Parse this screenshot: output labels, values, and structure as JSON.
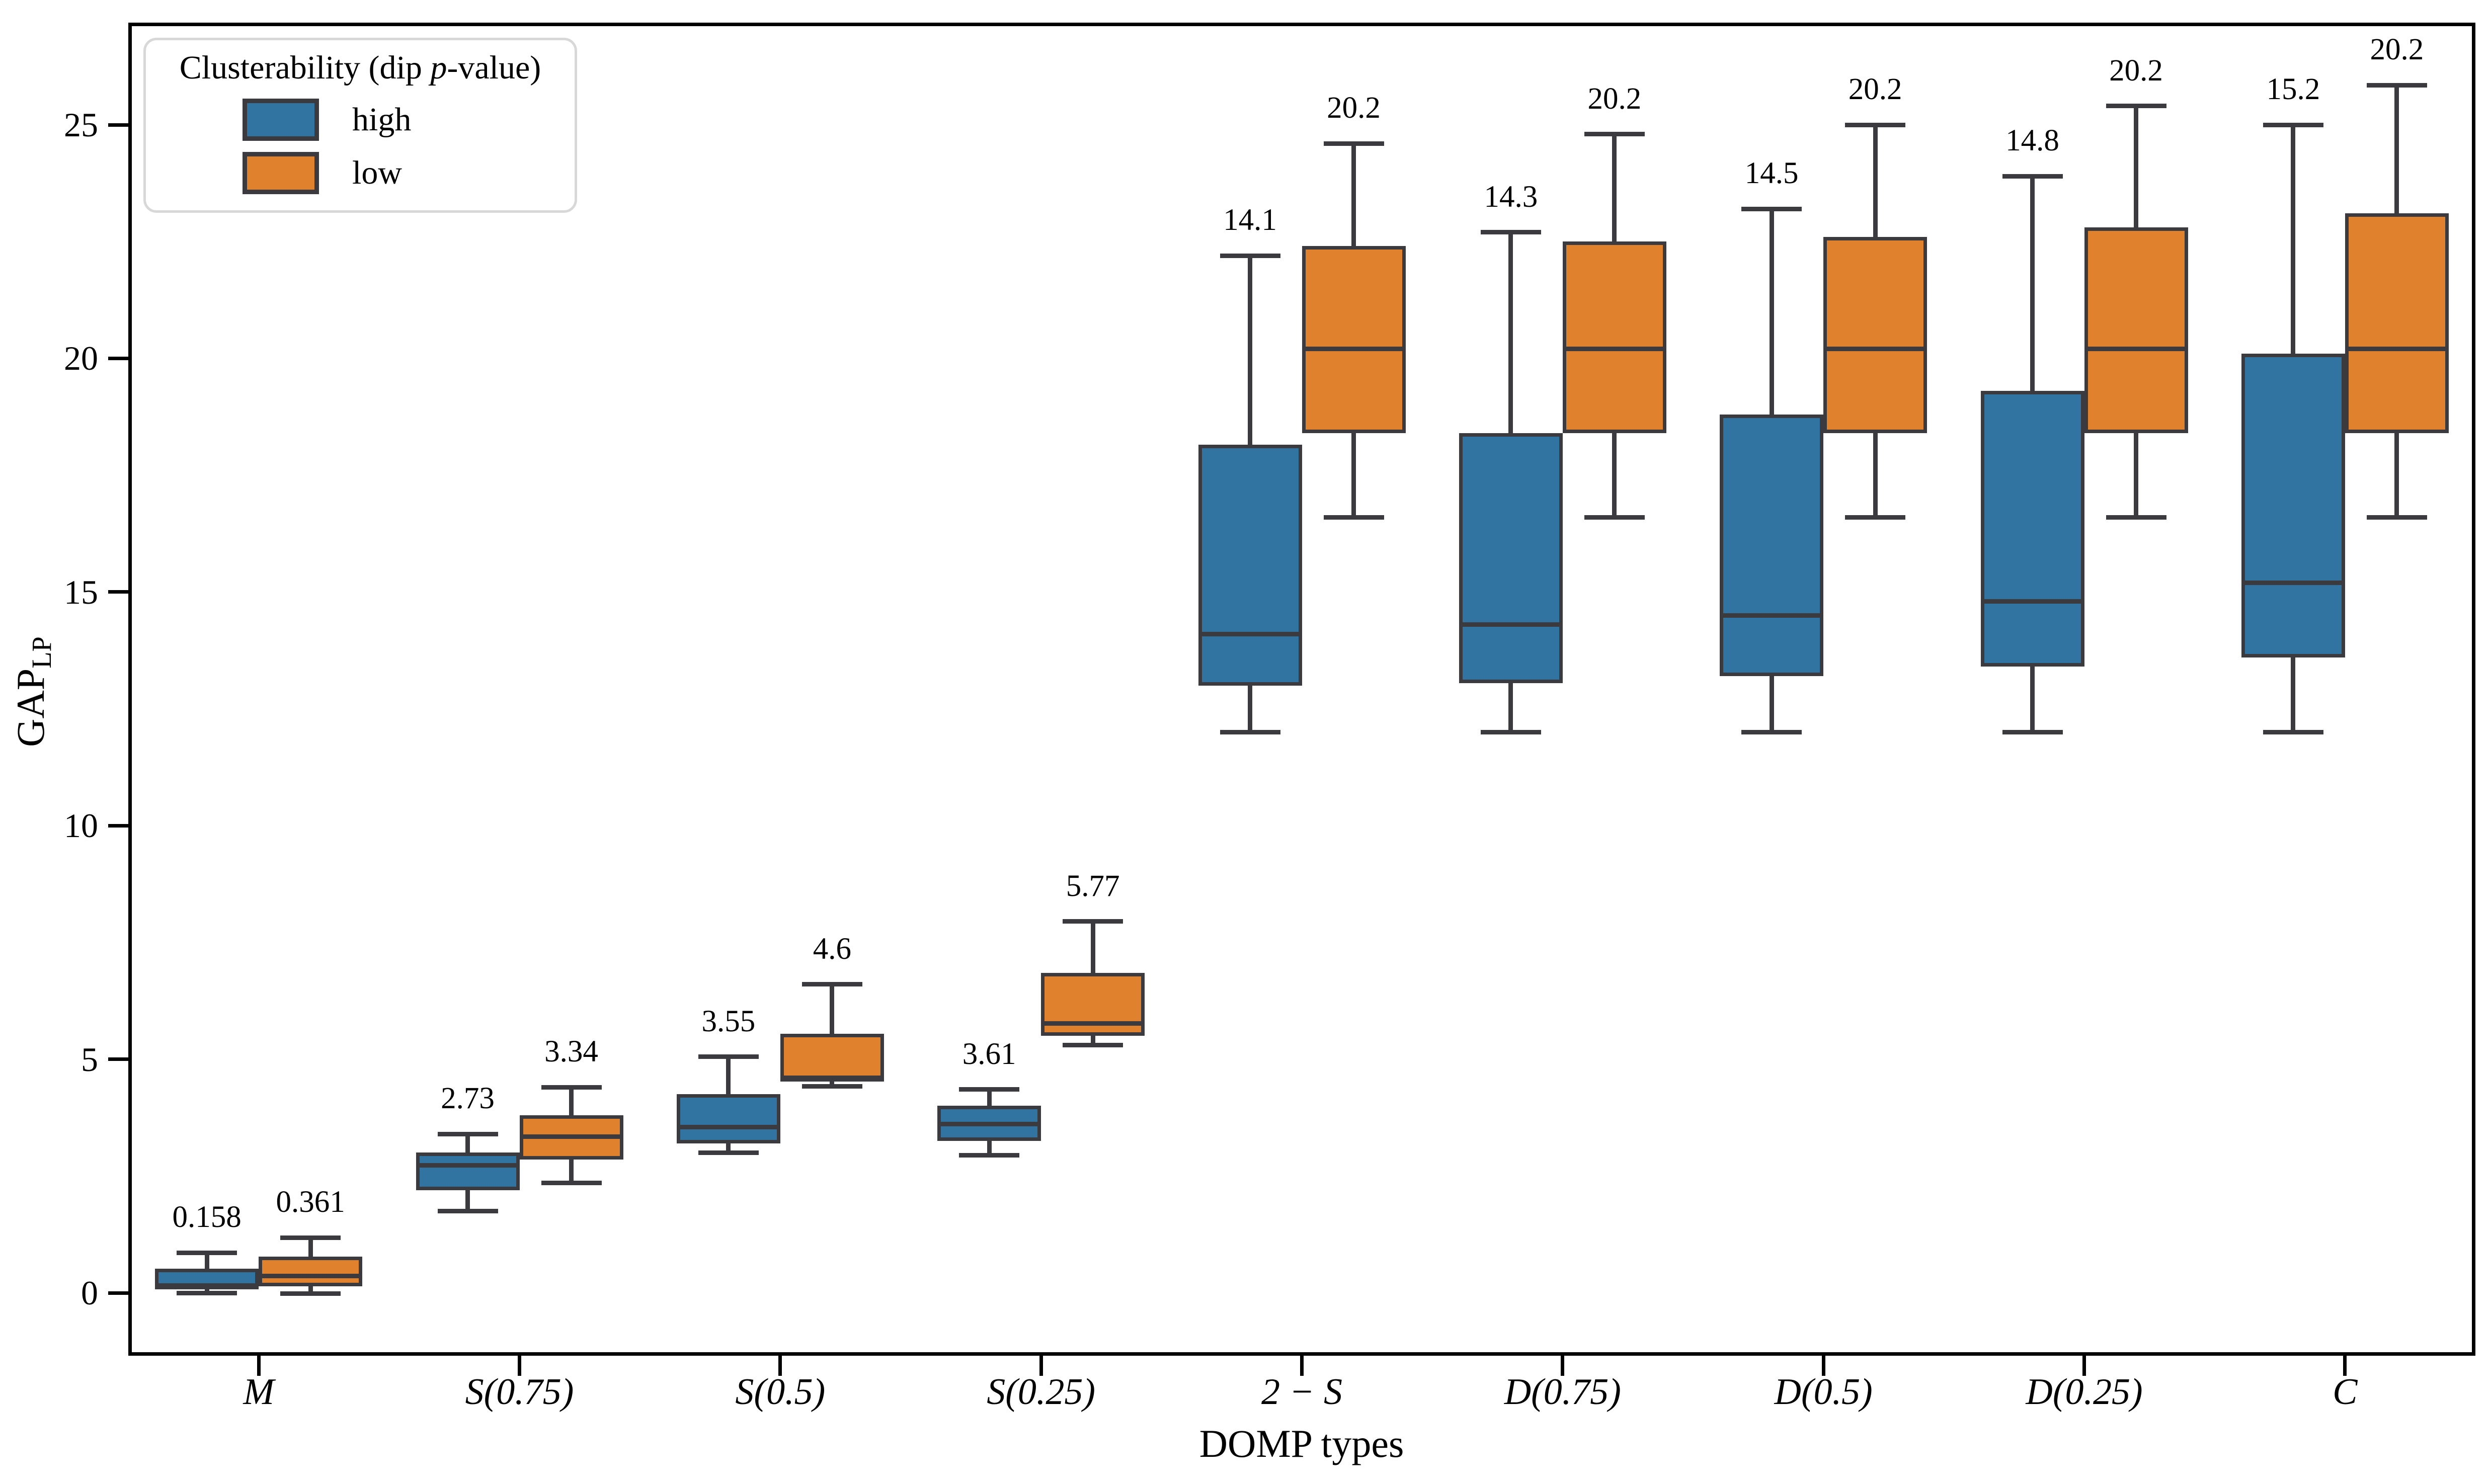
{
  "figure": {
    "background": "#ffffff",
    "edge_color": "#3B3B3F",
    "spine_color": "#000000",
    "legend_border_color": "#D8D8D8"
  },
  "legend": {
    "title_prefix": "Clusterability (dip ",
    "title_italic": "p",
    "title_suffix": "-value)",
    "entries": [
      {
        "label": "high",
        "color": "#3274A1"
      },
      {
        "label": "low",
        "color": "#E0812E"
      }
    ]
  },
  "x_axis": {
    "label": "DOMP types"
  },
  "y_axis": {
    "label": "GAP",
    "label_subscript": "LP"
  },
  "chart_data": {
    "type": "boxplot",
    "title": "",
    "xlabel": "DOMP types",
    "ylabel": "GAP_LP",
    "ylim": [
      -1.35,
      27.2
    ],
    "yticks": [
      0,
      5,
      10,
      15,
      20,
      25
    ],
    "grid": false,
    "legend_position": "upper left",
    "legend_title": "Clusterability (dip p-value)",
    "categories": [
      "M",
      "S(0.75)",
      "S(0.5)",
      "S(0.25)",
      "2 − S",
      "D(0.75)",
      "D(0.5)",
      "D(0.25)",
      "C"
    ],
    "series": [
      {
        "name": "high",
        "color": "#3274A1",
        "boxes": [
          {
            "whislo": 0.0,
            "q1": 0.075,
            "med": 0.158,
            "q3": 0.52,
            "whishi": 0.86,
            "label": "0.158"
          },
          {
            "whislo": 1.75,
            "q1": 2.2,
            "med": 2.73,
            "q3": 3.0,
            "whishi": 3.4,
            "label": "2.73"
          },
          {
            "whislo": 3.0,
            "q1": 3.2,
            "med": 3.55,
            "q3": 4.25,
            "whishi": 5.05,
            "label": "3.55"
          },
          {
            "whislo": 2.95,
            "q1": 3.25,
            "med": 3.61,
            "q3": 4.0,
            "whishi": 4.35,
            "label": "3.61"
          },
          {
            "whislo": 12.0,
            "q1": 13.0,
            "med": 14.1,
            "q3": 18.15,
            "whishi": 22.2,
            "label": "14.1"
          },
          {
            "whislo": 12.0,
            "q1": 13.05,
            "med": 14.3,
            "q3": 18.4,
            "whishi": 22.7,
            "label": "14.3"
          },
          {
            "whislo": 12.0,
            "q1": 13.2,
            "med": 14.5,
            "q3": 18.8,
            "whishi": 23.2,
            "label": "14.5"
          },
          {
            "whislo": 12.0,
            "q1": 13.4,
            "med": 14.8,
            "q3": 19.3,
            "whishi": 23.9,
            "label": "14.8"
          },
          {
            "whislo": 12.0,
            "q1": 13.6,
            "med": 15.2,
            "q3": 20.1,
            "whishi": 25.0,
            "label": "15.2"
          }
        ]
      },
      {
        "name": "low",
        "color": "#E0812E",
        "boxes": [
          {
            "whislo": -0.02,
            "q1": 0.14,
            "med": 0.361,
            "q3": 0.78,
            "whishi": 1.18,
            "label": "0.361"
          },
          {
            "whislo": 2.35,
            "q1": 2.85,
            "med": 3.34,
            "q3": 3.8,
            "whishi": 4.4,
            "label": "3.34"
          },
          {
            "whislo": 4.42,
            "q1": 4.52,
            "med": 4.6,
            "q3": 5.55,
            "whishi": 6.6,
            "label": "4.6"
          },
          {
            "whislo": 5.3,
            "q1": 5.5,
            "med": 5.77,
            "q3": 6.85,
            "whishi": 7.95,
            "label": "5.77"
          },
          {
            "whislo": 16.6,
            "q1": 18.4,
            "med": 20.2,
            "q3": 22.4,
            "whishi": 24.6,
            "label": "20.2"
          },
          {
            "whislo": 16.6,
            "q1": 18.4,
            "med": 20.2,
            "q3": 22.5,
            "whishi": 24.8,
            "label": "20.2"
          },
          {
            "whislo": 16.6,
            "q1": 18.4,
            "med": 20.2,
            "q3": 22.6,
            "whishi": 25.0,
            "label": "20.2"
          },
          {
            "whislo": 16.6,
            "q1": 18.4,
            "med": 20.2,
            "q3": 22.8,
            "whishi": 25.4,
            "label": "20.2"
          },
          {
            "whislo": 16.6,
            "q1": 18.4,
            "med": 20.2,
            "q3": 23.1,
            "whishi": 25.85,
            "label": "20.2"
          }
        ]
      }
    ]
  }
}
